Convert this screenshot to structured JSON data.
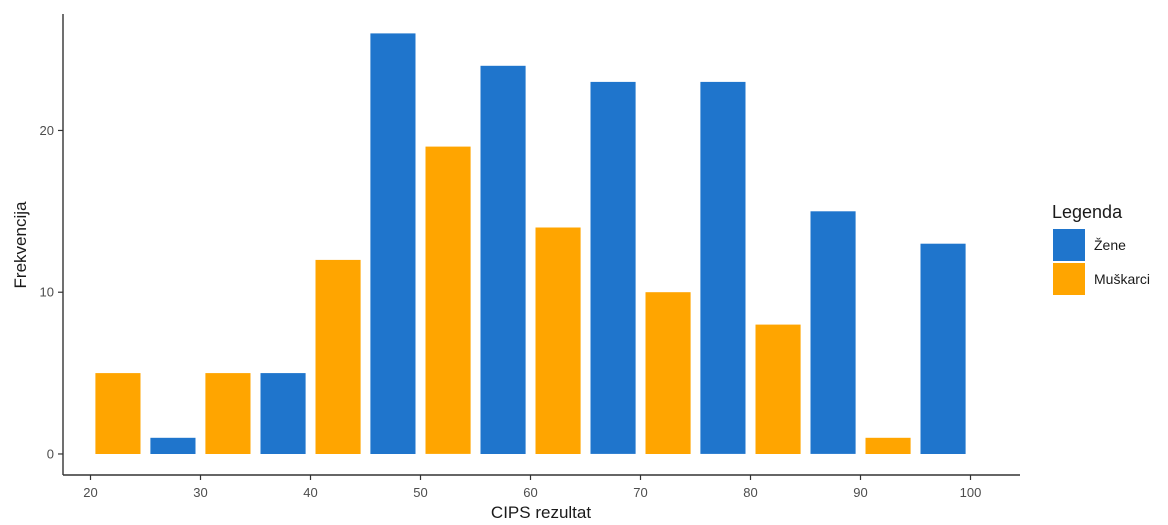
{
  "chart_data": {
    "type": "bar",
    "xlabel": "CIPS rezultat",
    "ylabel": "Frekvencija",
    "x_ticks": [
      20,
      30,
      40,
      50,
      60,
      70,
      80,
      90,
      100
    ],
    "y_ticks": [
      0,
      10,
      20
    ],
    "xlim": [
      17.5,
      104.5
    ],
    "ylim": [
      -1.3,
      27.2
    ],
    "grid": false,
    "legend": {
      "title": "Legenda",
      "placement": "right"
    },
    "series": [
      {
        "name": "Žene",
        "color": "#1f75cc",
        "x": [
          27.5,
          37.5,
          47.5,
          57.5,
          67.5,
          77.5,
          87.5,
          97.5
        ],
        "values": [
          1,
          5,
          26,
          24,
          23,
          23,
          15,
          13
        ]
      },
      {
        "name": "Muškarci",
        "color": "#ffa500",
        "x": [
          22.5,
          32.5,
          42.5,
          52.5,
          62.5,
          72.5,
          82.5,
          92.5
        ],
        "values": [
          5,
          5,
          12,
          19,
          14,
          10,
          8,
          1
        ]
      }
    ]
  }
}
